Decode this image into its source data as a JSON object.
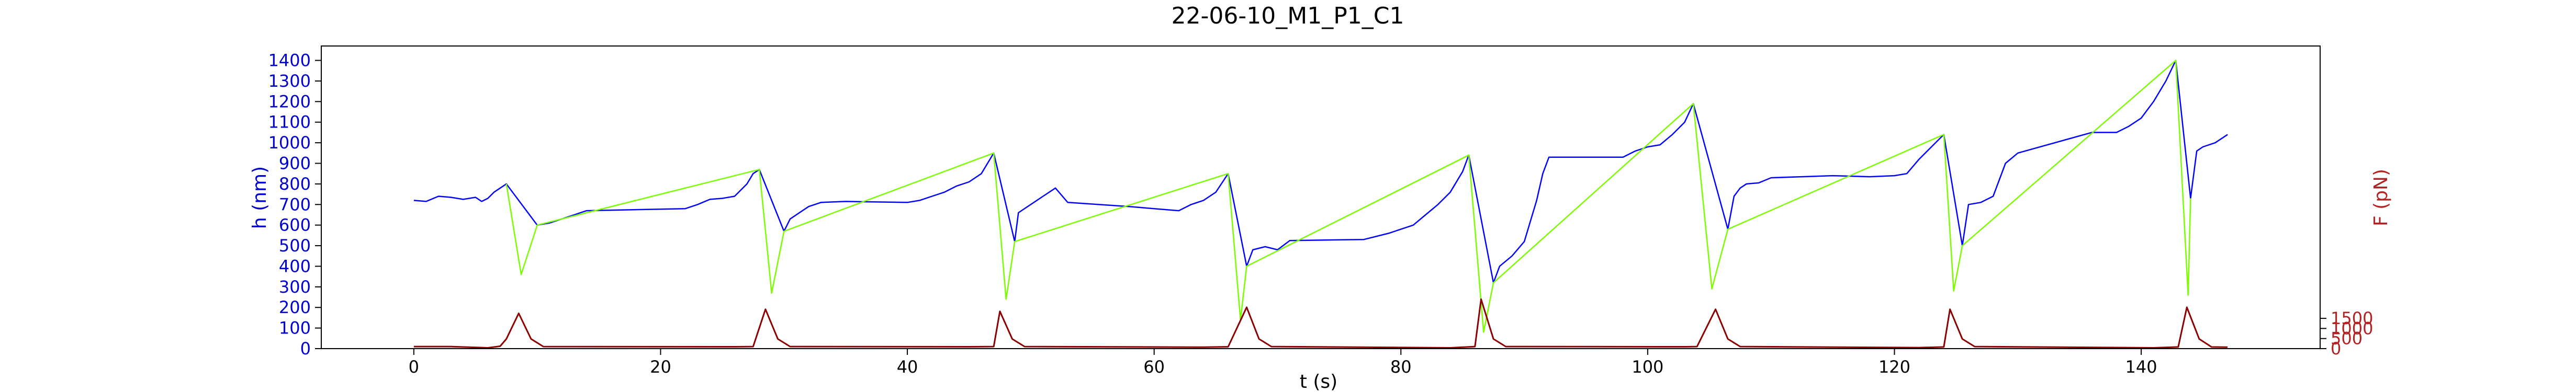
{
  "chart_data": {
    "type": "line",
    "title": "22-06-10_M1_P1_C1",
    "xlabel": "t (s)",
    "ylabel_left": "h (nm)",
    "ylabel_right": "F (pN)",
    "xlim": [
      -7.5,
      154.5
    ],
    "ylim_left": [
      0,
      1470
    ],
    "ylim_right": [
      0,
      15000
    ],
    "x_ticks": [
      "0",
      "20",
      "40",
      "60",
      "80",
      "100",
      "120",
      "140"
    ],
    "y_ticks_left": [
      "0",
      "100",
      "200",
      "300",
      "400",
      "500",
      "600",
      "700",
      "800",
      "900",
      "1000",
      "1100",
      "1200",
      "1300",
      "1400"
    ],
    "y_ticks_right": [
      "0",
      "500",
      "1000",
      "1500"
    ],
    "grid": false,
    "colors": {
      "h_rest": "#0000ff",
      "h_pull": "#7cfc00",
      "force": "#8b0000",
      "left_axis": "#0000cd",
      "right_axis": "#b22222"
    },
    "series": [
      {
        "axis": "left",
        "color_key": "h_rest",
        "points": [
          [
            0,
            720
          ],
          [
            1,
            715
          ],
          [
            2,
            740
          ],
          [
            3,
            735
          ],
          [
            4,
            725
          ],
          [
            5,
            735
          ],
          [
            5.5,
            715
          ],
          [
            6,
            730
          ],
          [
            6.5,
            760
          ],
          [
            7,
            780
          ],
          [
            7.5,
            800
          ],
          [
            10,
            600
          ],
          [
            11,
            610
          ],
          [
            13,
            650
          ],
          [
            14,
            670
          ],
          [
            22,
            680
          ],
          [
            23,
            700
          ],
          [
            24,
            725
          ],
          [
            25,
            730
          ],
          [
            26,
            740
          ],
          [
            27,
            800
          ],
          [
            27.5,
            850
          ],
          [
            28,
            870
          ],
          [
            30,
            570
          ],
          [
            30.5,
            630
          ],
          [
            32,
            690
          ],
          [
            33,
            710
          ],
          [
            35,
            715
          ],
          [
            40,
            710
          ],
          [
            41,
            720
          ],
          [
            42,
            740
          ],
          [
            43,
            760
          ],
          [
            44,
            790
          ],
          [
            45,
            810
          ],
          [
            46,
            850
          ],
          [
            46.5,
            900
          ],
          [
            47,
            950
          ],
          [
            48.7,
            520
          ],
          [
            49,
            660
          ],
          [
            51,
            740
          ],
          [
            52,
            780
          ],
          [
            53,
            710
          ],
          [
            58,
            690
          ],
          [
            60,
            680
          ],
          [
            62,
            670
          ],
          [
            63,
            700
          ],
          [
            64,
            720
          ],
          [
            65,
            760
          ],
          [
            66,
            850
          ],
          [
            67.5,
            400
          ],
          [
            68,
            480
          ],
          [
            69,
            495
          ],
          [
            70,
            480
          ],
          [
            71,
            525
          ],
          [
            77,
            530
          ],
          [
            79,
            560
          ],
          [
            81,
            600
          ],
          [
            82,
            650
          ],
          [
            83,
            700
          ],
          [
            84,
            760
          ],
          [
            85,
            860
          ],
          [
            85.5,
            940
          ],
          [
            87.5,
            320
          ],
          [
            88,
            400
          ],
          [
            89,
            450
          ],
          [
            90,
            520
          ],
          [
            91,
            720
          ],
          [
            91.5,
            850
          ],
          [
            92,
            930
          ],
          [
            96,
            930
          ],
          [
            98,
            930
          ],
          [
            99,
            960
          ],
          [
            100,
            980
          ],
          [
            101,
            990
          ],
          [
            102,
            1040
          ],
          [
            103,
            1100
          ],
          [
            103.7,
            1190
          ],
          [
            106.5,
            580
          ],
          [
            107,
            740
          ],
          [
            107.5,
            780
          ],
          [
            108,
            800
          ],
          [
            109,
            805
          ],
          [
            110,
            830
          ],
          [
            115,
            840
          ],
          [
            118,
            835
          ],
          [
            120,
            840
          ],
          [
            121,
            850
          ],
          [
            122,
            920
          ],
          [
            123,
            980
          ],
          [
            124,
            1040
          ],
          [
            125.5,
            500
          ],
          [
            126,
            700
          ],
          [
            127,
            710
          ],
          [
            128,
            740
          ],
          [
            129,
            900
          ],
          [
            130,
            950
          ],
          [
            136,
            1050
          ],
          [
            138,
            1050
          ],
          [
            139,
            1080
          ],
          [
            140,
            1120
          ],
          [
            141,
            1200
          ],
          [
            142,
            1300
          ],
          [
            142.8,
            1400
          ],
          [
            144,
            730
          ],
          [
            144.5,
            960
          ],
          [
            145,
            980
          ],
          [
            146,
            1000
          ],
          [
            147,
            1040
          ]
        ]
      },
      {
        "axis": "left",
        "color_key": "h_pull",
        "points": [
          [
            7.5,
            800
          ],
          [
            8.7,
            360
          ],
          [
            10,
            600
          ],
          [
            28,
            870
          ],
          [
            29,
            270
          ],
          [
            30,
            570
          ],
          [
            47,
            950
          ],
          [
            48,
            240
          ],
          [
            48.7,
            520
          ],
          [
            66,
            850
          ],
          [
            67,
            140
          ],
          [
            67.5,
            400
          ],
          [
            85.5,
            940
          ],
          [
            86.7,
            80
          ],
          [
            87.5,
            320
          ],
          [
            103.7,
            1190
          ],
          [
            105.2,
            290
          ],
          [
            106.5,
            580
          ],
          [
            124,
            1040
          ],
          [
            124.8,
            280
          ],
          [
            125.5,
            500
          ],
          [
            142.8,
            1400
          ],
          [
            143.8,
            260
          ],
          [
            144,
            730
          ]
        ]
      },
      {
        "axis": "right",
        "color_key": "force",
        "points": [
          [
            0,
            100
          ],
          [
            3,
            100
          ],
          [
            6,
            40
          ],
          [
            7,
            120
          ],
          [
            7.5,
            480
          ],
          [
            8.5,
            1750
          ],
          [
            9.5,
            480
          ],
          [
            10.5,
            100
          ],
          [
            26,
            90
          ],
          [
            27.5,
            100
          ],
          [
            28.5,
            1950
          ],
          [
            29.5,
            480
          ],
          [
            30.5,
            100
          ],
          [
            45,
            90
          ],
          [
            47,
            100
          ],
          [
            47.5,
            1850
          ],
          [
            48.5,
            480
          ],
          [
            49.5,
            100
          ],
          [
            64,
            70
          ],
          [
            66,
            90
          ],
          [
            67.5,
            2050
          ],
          [
            68.5,
            480
          ],
          [
            69.5,
            100
          ],
          [
            84,
            40
          ],
          [
            86,
            100
          ],
          [
            86.5,
            2450
          ],
          [
            87.5,
            480
          ],
          [
            88.5,
            100
          ],
          [
            103,
            90
          ],
          [
            104,
            100
          ],
          [
            105.5,
            1950
          ],
          [
            106.5,
            480
          ],
          [
            107.5,
            100
          ],
          [
            122,
            50
          ],
          [
            124,
            80
          ],
          [
            124.5,
            1950
          ],
          [
            125.5,
            480
          ],
          [
            126.5,
            100
          ],
          [
            141,
            40
          ],
          [
            143,
            80
          ],
          [
            143.7,
            2050
          ],
          [
            144.7,
            480
          ],
          [
            145.7,
            80
          ],
          [
            147,
            70
          ]
        ]
      }
    ]
  }
}
